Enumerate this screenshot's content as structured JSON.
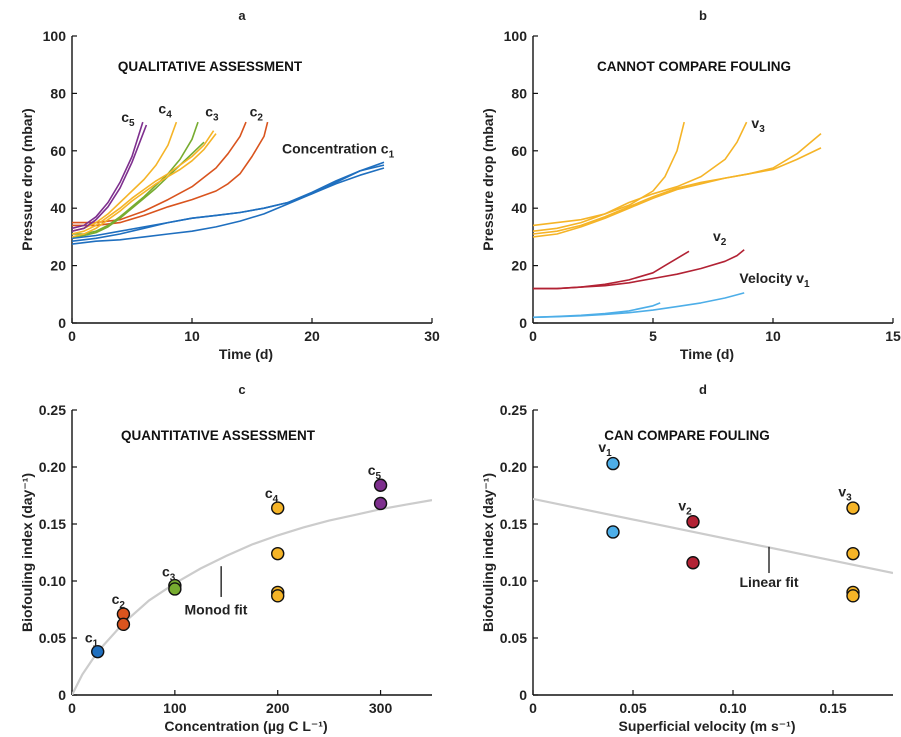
{
  "chart_data": [
    {
      "panel": "a",
      "type": "line",
      "title": "QUALITATIVE ASSESSMENT",
      "xlabel": "Time (d)",
      "ylabel": "Pressure drop (mbar)",
      "xlim": [
        0,
        30
      ],
      "ylim": [
        0,
        100
      ],
      "xticks": [
        0,
        10,
        20,
        30
      ],
      "yticks": [
        0,
        20,
        40,
        60,
        80,
        100
      ],
      "annotations": [
        {
          "label": "c5",
          "x": 4.1,
          "y": 70
        },
        {
          "label": "c4",
          "x": 7.2,
          "y": 73
        },
        {
          "label": "c3",
          "x": 11.1,
          "y": 72
        },
        {
          "label": "c2",
          "x": 14.8,
          "y": 72
        },
        {
          "label": "Concentration c1",
          "x": 17.5,
          "y": 59
        }
      ],
      "series": [
        {
          "color": "#1f6fbf",
          "x": [
            0,
            2,
            4,
            6,
            8,
            10,
            12,
            14,
            16,
            18,
            20,
            22,
            24,
            26
          ],
          "y": [
            29.5,
            30.5,
            32,
            33.5,
            35,
            36.5,
            37.5,
            38.5,
            40,
            42,
            45,
            49,
            53,
            56
          ]
        },
        {
          "color": "#1f6fbf",
          "x": [
            0,
            2,
            4,
            6,
            8,
            10,
            12,
            14,
            16,
            18,
            20,
            22,
            24,
            26
          ],
          "y": [
            28.5,
            29.5,
            31,
            33,
            35,
            36.5,
            37.5,
            38.5,
            40,
            42,
            45.5,
            49.5,
            53,
            55
          ]
        },
        {
          "color": "#1f6fbf",
          "x": [
            0,
            2,
            4,
            6,
            8,
            10,
            12,
            14,
            16,
            18,
            20,
            22,
            24,
            26
          ],
          "y": [
            27.5,
            28.5,
            29,
            30,
            31,
            32,
            33.5,
            35.5,
            38,
            41.5,
            45,
            48.5,
            51.5,
            54
          ]
        },
        {
          "color": "#d9541e",
          "x": [
            0,
            1,
            2,
            4,
            6,
            8,
            10,
            12,
            13,
            14,
            14.5
          ],
          "y": [
            35,
            35,
            35,
            36,
            39,
            43,
            47.5,
            54,
            59,
            65,
            70
          ]
        },
        {
          "color": "#d9541e",
          "x": [
            0,
            1,
            2,
            4,
            6,
            8,
            10,
            12,
            13,
            14,
            15,
            16,
            16.3
          ],
          "y": [
            34,
            34,
            34,
            35,
            37.5,
            40.5,
            43,
            46,
            48.5,
            52,
            58,
            65,
            70
          ]
        },
        {
          "color": "#77ac30",
          "x": [
            0,
            1,
            2,
            3,
            4,
            5,
            6,
            7,
            8,
            9,
            10,
            10.5
          ],
          "y": [
            31,
            31,
            32,
            34,
            37,
            40.5,
            44,
            48,
            52,
            57,
            64,
            70
          ]
        },
        {
          "color": "#77ac30",
          "x": [
            0,
            1,
            2,
            3,
            4,
            5,
            6,
            7,
            8,
            9,
            10,
            11
          ],
          "y": [
            30,
            30.5,
            31.5,
            33.5,
            36.5,
            40,
            43.5,
            47,
            51,
            55,
            59,
            63
          ]
        },
        {
          "color": "#f5b427",
          "x": [
            0,
            1,
            2,
            3,
            4,
            5,
            6,
            7,
            8,
            8.7
          ],
          "y": [
            32,
            33,
            35,
            38,
            42,
            46,
            50,
            55,
            62,
            70
          ]
        },
        {
          "color": "#f5b427",
          "x": [
            0,
            1,
            2,
            3,
            4,
            5,
            6,
            7,
            8,
            9,
            10,
            11,
            11.8
          ],
          "y": [
            31,
            32,
            34,
            37,
            40,
            43.5,
            46.5,
            49.5,
            52,
            55,
            58,
            62,
            67
          ]
        },
        {
          "color": "#f5b427",
          "x": [
            0,
            1,
            2,
            3,
            4,
            5,
            6,
            7,
            8,
            9,
            10,
            11,
            12
          ],
          "y": [
            30,
            31,
            33,
            36,
            39,
            42.5,
            45.5,
            48.5,
            51,
            53.5,
            56.5,
            60.5,
            66
          ]
        },
        {
          "color": "#7e2f8e",
          "x": [
            0,
            1,
            2,
            3,
            4,
            5,
            5.9
          ],
          "y": [
            33,
            34,
            37,
            42,
            49,
            58,
            70
          ]
        },
        {
          "color": "#7e2f8e",
          "x": [
            0,
            1,
            2,
            3,
            4,
            5,
            6.2
          ],
          "y": [
            32,
            33,
            36,
            40.5,
            47,
            56,
            69
          ]
        }
      ]
    },
    {
      "panel": "b",
      "type": "line",
      "title": "CANNOT COMPARE FOULING",
      "xlabel": "Time (d)",
      "ylabel": "Pressure drop (mbar)",
      "xlim": [
        0,
        15
      ],
      "ylim": [
        0,
        100
      ],
      "xticks": [
        0,
        5,
        10,
        15
      ],
      "yticks": [
        0,
        20,
        40,
        60,
        80,
        100
      ],
      "annotations": [
        {
          "label": "v3",
          "x": 9.1,
          "y": 68
        },
        {
          "label": "v2",
          "x": 7.5,
          "y": 28.5
        },
        {
          "label": "Velocity v1",
          "x": 8.6,
          "y": 14
        }
      ],
      "series": [
        {
          "color": "#f5b427",
          "x": [
            0,
            1,
            2,
            3,
            4,
            5,
            5.5,
            6,
            6.3
          ],
          "y": [
            34,
            35,
            36,
            38,
            41,
            46,
            51,
            60,
            70
          ]
        },
        {
          "color": "#f5b427",
          "x": [
            0,
            1,
            2,
            3,
            4,
            5,
            6,
            7,
            8,
            8.5,
            8.9
          ],
          "y": [
            32,
            33,
            35,
            38,
            42,
            45,
            47.5,
            51,
            57,
            63,
            70
          ]
        },
        {
          "color": "#f5b427",
          "x": [
            0,
            1,
            2,
            3,
            4,
            5,
            6,
            7,
            8,
            9,
            10,
            11,
            12
          ],
          "y": [
            31,
            32,
            34,
            37,
            40.5,
            44,
            47,
            49,
            50.5,
            52,
            53.5,
            57,
            61
          ]
        },
        {
          "color": "#f5b427",
          "x": [
            0,
            1,
            2,
            3,
            4,
            5,
            6,
            7,
            8,
            9,
            10,
            11,
            12
          ],
          "y": [
            30,
            31,
            33.5,
            36.5,
            40,
            43.5,
            46.5,
            48.5,
            50.5,
            52,
            54,
            59,
            66
          ]
        },
        {
          "color": "#b22234",
          "x": [
            0,
            1,
            2,
            3,
            4,
            5,
            5.5,
            6,
            6.5
          ],
          "y": [
            12,
            12,
            12.5,
            13.5,
            15,
            17.5,
            20,
            22.5,
            25
          ]
        },
        {
          "color": "#b22234",
          "x": [
            0,
            1,
            2,
            3,
            4,
            5,
            6,
            7,
            8,
            8.5,
            8.8
          ],
          "y": [
            12,
            12,
            12.5,
            13,
            14,
            15.5,
            17,
            19,
            21.5,
            23.5,
            25.5
          ]
        },
        {
          "color": "#4daee8",
          "x": [
            0,
            1,
            2,
            3,
            4,
            5,
            5.3
          ],
          "y": [
            2,
            2.3,
            2.7,
            3.3,
            4.2,
            6,
            7
          ]
        },
        {
          "color": "#4daee8",
          "x": [
            0,
            1,
            2,
            3,
            4,
            5,
            6,
            7,
            8,
            8.8
          ],
          "y": [
            2,
            2.2,
            2.5,
            3,
            3.6,
            4.5,
            5.7,
            7,
            8.7,
            10.5
          ]
        }
      ]
    },
    {
      "panel": "c",
      "type": "scatter",
      "title": "QUANTITATIVE ASSESSMENT",
      "xlabel": "Concentration (µg C L⁻¹)",
      "ylabel": "Biofouling index (day⁻¹)",
      "xlim": [
        0,
        350
      ],
      "ylim": [
        0,
        0.25
      ],
      "xticks": [
        0,
        100,
        200,
        300
      ],
      "yticks": [
        0,
        0.05,
        0.1,
        0.15,
        0.2,
        0.25
      ],
      "ytick_labels": [
        "0",
        "0.05",
        "0.10",
        "0.15",
        "0.20",
        "0.25"
      ],
      "fit": {
        "label": "Monod fit",
        "color": "#cccccc",
        "x": [
          0,
          10,
          25,
          50,
          75,
          100,
          125,
          150,
          175,
          200,
          225,
          250,
          275,
          300,
          325,
          350
        ],
        "y": [
          0,
          0.018,
          0.038,
          0.063,
          0.083,
          0.098,
          0.111,
          0.122,
          0.132,
          0.14,
          0.147,
          0.153,
          0.158,
          0.163,
          0.167,
          0.171
        ]
      },
      "fit_label_pos": {
        "x": 140,
        "y": 0.075
      },
      "fit_pointer": {
        "x": [
          145,
          145
        ],
        "y": [
          0.086,
          0.113
        ]
      },
      "points": [
        {
          "group": "c1",
          "x": 25,
          "y": 0.038,
          "color": "#1f6fbf"
        },
        {
          "group": "c2",
          "x": 50,
          "y": 0.071,
          "color": "#d9541e"
        },
        {
          "group": "c2",
          "x": 50,
          "y": 0.062,
          "color": "#d9541e"
        },
        {
          "group": "c3",
          "x": 100,
          "y": 0.096,
          "color": "#77ac30"
        },
        {
          "group": "c3",
          "x": 100,
          "y": 0.093,
          "color": "#77ac30"
        },
        {
          "group": "c4",
          "x": 200,
          "y": 0.164,
          "color": "#f5b427"
        },
        {
          "group": "c4",
          "x": 200,
          "y": 0.124,
          "color": "#f5b427"
        },
        {
          "group": "c4",
          "x": 200,
          "y": 0.09,
          "color": "#f5b427"
        },
        {
          "group": "c4",
          "x": 200,
          "y": 0.087,
          "color": "#f5b427"
        },
        {
          "group": "c5",
          "x": 300,
          "y": 0.184,
          "color": "#7e2f8e"
        },
        {
          "group": "c5",
          "x": 300,
          "y": 0.168,
          "color": "#7e2f8e"
        }
      ],
      "group_labels": [
        {
          "label": "c1",
          "x": 19,
          "y": 0.046
        },
        {
          "label": "c2",
          "x": 45,
          "y": 0.08
        },
        {
          "label": "c3",
          "x": 94,
          "y": 0.104
        },
        {
          "label": "c4",
          "x": 194,
          "y": 0.173
        },
        {
          "label": "c5",
          "x": 294,
          "y": 0.193
        }
      ]
    },
    {
      "panel": "d",
      "type": "scatter",
      "title": "CAN COMPARE FOULING",
      "xlabel": "Superficial velocity (m s⁻¹)",
      "ylabel": "Biofouling index (day⁻¹)",
      "xlim": [
        0,
        0.18
      ],
      "ylim": [
        0,
        0.25
      ],
      "xticks": [
        0,
        0.05,
        0.1,
        0.15
      ],
      "xtick_labels": [
        "0",
        "0.05",
        "0.10",
        "0.15"
      ],
      "yticks": [
        0,
        0.05,
        0.1,
        0.15,
        0.2,
        0.25
      ],
      "ytick_labels": [
        "0",
        "0.05",
        "0.10",
        "0.15",
        "0.20",
        "0.25"
      ],
      "fit": {
        "label": "Linear fit",
        "color": "#cccccc",
        "x": [
          0,
          0.18
        ],
        "y": [
          0.172,
          0.107
        ]
      },
      "fit_label_pos": {
        "x": 0.118,
        "y": 0.099
      },
      "fit_pointer": {
        "x": [
          0.118,
          0.118
        ],
        "y": [
          0.107,
          0.13
        ]
      },
      "points": [
        {
          "group": "v1",
          "x": 0.04,
          "y": 0.203,
          "color": "#4daee8"
        },
        {
          "group": "v1",
          "x": 0.04,
          "y": 0.143,
          "color": "#4daee8"
        },
        {
          "group": "v2",
          "x": 0.08,
          "y": 0.152,
          "color": "#b22234"
        },
        {
          "group": "v2",
          "x": 0.08,
          "y": 0.116,
          "color": "#b22234"
        },
        {
          "group": "v3",
          "x": 0.16,
          "y": 0.164,
          "color": "#f5b427"
        },
        {
          "group": "v3",
          "x": 0.16,
          "y": 0.124,
          "color": "#f5b427"
        },
        {
          "group": "v3",
          "x": 0.16,
          "y": 0.09,
          "color": "#f5b427"
        },
        {
          "group": "v3",
          "x": 0.16,
          "y": 0.087,
          "color": "#f5b427"
        }
      ],
      "group_labels": [
        {
          "label": "v1",
          "x": 0.036,
          "y": 0.213
        },
        {
          "label": "v2",
          "x": 0.076,
          "y": 0.162
        },
        {
          "label": "v3",
          "x": 0.156,
          "y": 0.174
        }
      ]
    }
  ]
}
